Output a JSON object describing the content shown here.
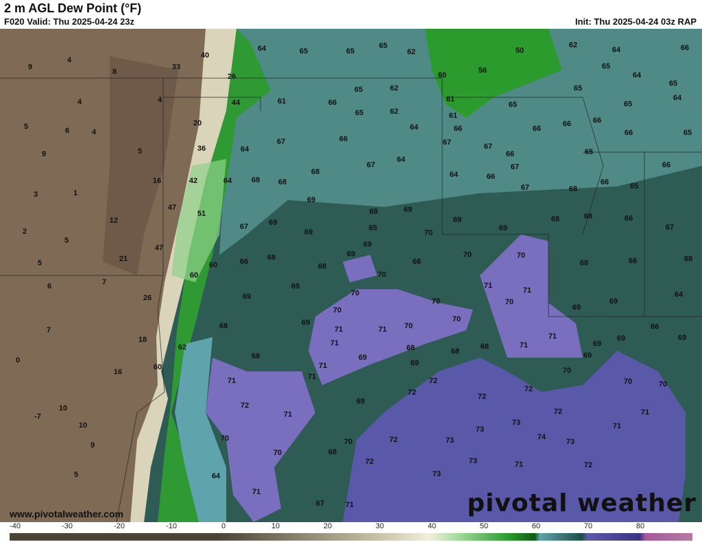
{
  "header": {
    "title": "2 m AGL Dew Point (°F)",
    "valid": "F020 Valid: Thu 2025-04-24 23z",
    "init": "Init: Thu 2025-04-24 03z RAP"
  },
  "footer": {
    "website": "www.pivotalweather.com",
    "logo": "pivotal weather"
  },
  "colorbar": {
    "ticks": [
      "-40",
      "-30",
      "-20",
      "-10",
      "0",
      "10",
      "20",
      "30",
      "40",
      "50",
      "60",
      "70",
      "80"
    ],
    "colors": {
      "-40": "#7a5a43",
      "0": "#4e4438",
      "30": "#c6c1a6",
      "40": "#f1efdc",
      "45": "#a9dca0",
      "55": "#2a9b2c",
      "60": "#0d5c11",
      "61": "#5fa3ad",
      "69": "#1e4d48",
      "70": "#5a5aa8",
      "80": "#3b3482",
      "81": "#a45a9a",
      "90": "#b77ba1"
    }
  },
  "map": {
    "units": "°F",
    "labels": [
      "9",
      "4",
      "8",
      "4",
      "5",
      "6",
      "4",
      "9",
      "5",
      "3",
      "1",
      "16",
      "12",
      "2",
      "5",
      "5",
      "21",
      "47",
      "7",
      "6",
      "26",
      "7",
      "18",
      "0",
      "16",
      "-7",
      "10",
      "10",
      "9",
      "5",
      "40",
      "33",
      "26",
      "4",
      "44",
      "20",
      "36",
      "42",
      "47",
      "51",
      "64",
      "64",
      "68",
      "67",
      "69",
      "60",
      "60",
      "66",
      "68",
      "69",
      "69",
      "68",
      "62",
      "60",
      "68",
      "71",
      "72",
      "71",
      "70",
      "70",
      "64",
      "71",
      "67",
      "68",
      "71",
      "70",
      "64",
      "65",
      "65",
      "65",
      "62",
      "61",
      "65",
      "62",
      "66",
      "65",
      "62",
      "64",
      "67",
      "66",
      "67",
      "64",
      "68",
      "68",
      "69",
      "68",
      "65",
      "69",
      "69",
      "69",
      "68",
      "69",
      "70",
      "70",
      "70",
      "66",
      "69",
      "69",
      "70",
      "69",
      "70",
      "71",
      "71",
      "71",
      "70",
      "70",
      "70",
      "71",
      "71",
      "69",
      "68",
      "69",
      "68",
      "68",
      "72",
      "72",
      "69",
      "72",
      "72",
      "73",
      "73",
      "73",
      "73",
      "72",
      "73",
      "74",
      "73",
      "72",
      "72",
      "71",
      "72",
      "71",
      "71",
      "70",
      "70",
      "70",
      "71",
      "71",
      "69",
      "69",
      "69",
      "70",
      "71",
      "70",
      "71",
      "69",
      "69",
      "68",
      "68",
      "68",
      "68",
      "67",
      "66",
      "64",
      "67",
      "66",
      "67",
      "67",
      "66",
      "60",
      "56",
      "50",
      "61",
      "61",
      "65",
      "66",
      "66",
      "66",
      "65",
      "65",
      "62",
      "64",
      "65",
      "64",
      "65",
      "66",
      "65",
      "64",
      "65",
      "66",
      "66",
      "66",
      "65",
      "66",
      "67",
      "66",
      "68",
      "64",
      "66",
      "69"
    ]
  }
}
